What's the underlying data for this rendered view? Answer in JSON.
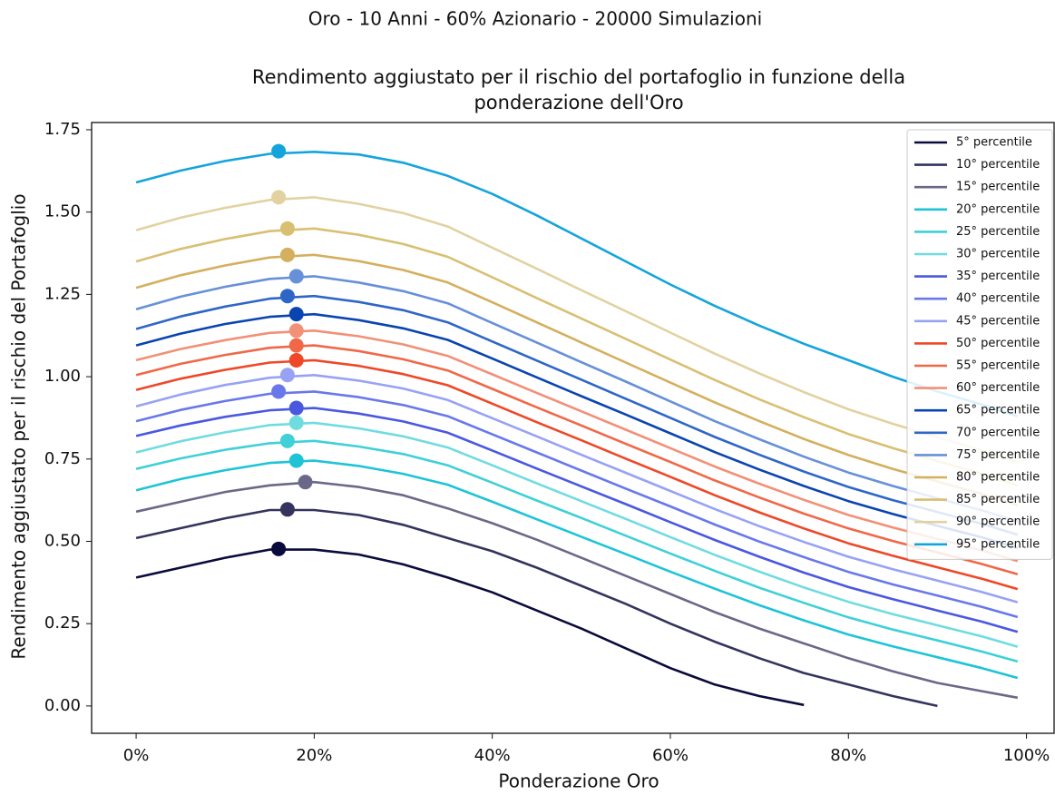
{
  "chart_data": {
    "type": "line",
    "suptitle": "Oro - 10 Anni - 60% Azionario - 20000 Simulazioni",
    "title": [
      "Rendimento aggiustato per il rischio del portafoglio in funzione della",
      "ponderazione dell'Oro"
    ],
    "x_label": "Ponderazione Oro",
    "y_label": "Rendimento aggiustato per il rischio del Portafoglio",
    "xlim": [
      -5,
      103.1
    ],
    "ylim": [
      -0.083,
      1.772
    ],
    "xticks": [
      {
        "value": 0,
        "label": "0%"
      },
      {
        "value": 20,
        "label": "20%"
      },
      {
        "value": 40,
        "label": "40%"
      },
      {
        "value": 60,
        "label": "60%"
      },
      {
        "value": 80,
        "label": "80%"
      },
      {
        "value": 100,
        "label": "100%"
      }
    ],
    "yticks": [
      {
        "value": 0,
        "label": "0.00"
      },
      {
        "value": 0.25,
        "label": "0.25"
      },
      {
        "value": 0.5,
        "label": "0.50"
      },
      {
        "value": 0.75,
        "label": "0.75"
      },
      {
        "value": 1,
        "label": "1.00"
      },
      {
        "value": 1.25,
        "label": "1.25"
      },
      {
        "value": 1.5,
        "label": "1.50"
      },
      {
        "value": 1.75,
        "label": "1.75"
      }
    ],
    "legend_position": "upper right",
    "x": [
      0,
      5,
      10,
      15,
      20,
      25,
      30,
      35,
      40,
      45,
      50,
      55,
      60,
      65,
      70,
      75,
      80,
      85,
      90,
      95,
      99
    ],
    "series": [
      {
        "name": "5° percentile",
        "color": "#0a0a3c",
        "max_x": 16,
        "max_y": 0.477,
        "values": [
          0.39,
          0.42,
          0.45,
          0.475,
          0.475,
          0.46,
          0.43,
          0.39,
          0.345,
          0.29,
          0.235,
          0.175,
          0.115,
          0.065,
          0.03,
          0.003,
          null,
          null,
          null,
          null,
          null
        ]
      },
      {
        "name": "10° percentile",
        "color": "#34335e",
        "max_x": 17,
        "max_y": 0.597,
        "values": [
          0.51,
          0.54,
          0.57,
          0.595,
          0.595,
          0.58,
          0.55,
          0.51,
          0.47,
          0.42,
          0.365,
          0.31,
          0.25,
          0.195,
          0.145,
          0.1,
          0.065,
          0.03,
          0.0,
          null,
          null
        ]
      },
      {
        "name": "15° percentile",
        "color": "#6a6888",
        "max_x": 19,
        "max_y": 0.68,
        "values": [
          0.59,
          0.62,
          0.65,
          0.67,
          0.68,
          0.665,
          0.64,
          0.6,
          0.555,
          0.505,
          0.45,
          0.395,
          0.34,
          0.285,
          0.235,
          0.19,
          0.145,
          0.105,
          0.07,
          0.045,
          0.025
        ]
      },
      {
        "name": "20° percentile",
        "color": "#1ec4d6",
        "max_x": 18,
        "max_y": 0.745,
        "values": [
          0.655,
          0.689,
          0.716,
          0.738,
          0.745,
          0.729,
          0.705,
          0.672,
          0.62,
          0.567,
          0.514,
          0.461,
          0.408,
          0.356,
          0.306,
          0.26,
          0.217,
          0.181,
          0.148,
          0.115,
          0.085
        ]
      },
      {
        "name": "25° percentile",
        "color": "#40d0d8",
        "max_x": 17,
        "max_y": 0.805,
        "values": [
          0.72,
          0.752,
          0.778,
          0.798,
          0.805,
          0.788,
          0.765,
          0.731,
          0.678,
          0.624,
          0.571,
          0.517,
          0.463,
          0.41,
          0.359,
          0.313,
          0.269,
          0.232,
          0.199,
          0.165,
          0.135
        ]
      },
      {
        "name": "30° percentile",
        "color": "#70dce0",
        "max_x": 18,
        "max_y": 0.86,
        "values": [
          0.77,
          0.804,
          0.831,
          0.853,
          0.86,
          0.843,
          0.819,
          0.785,
          0.731,
          0.676,
          0.622,
          0.568,
          0.513,
          0.459,
          0.408,
          0.36,
          0.316,
          0.279,
          0.245,
          0.211,
          0.18
        ]
      },
      {
        "name": "35° percentile",
        "color": "#4a58e0",
        "max_x": 18,
        "max_y": 0.905,
        "values": [
          0.82,
          0.852,
          0.878,
          0.898,
          0.905,
          0.888,
          0.864,
          0.83,
          0.776,
          0.721,
          0.667,
          0.613,
          0.558,
          0.504,
          0.453,
          0.405,
          0.361,
          0.324,
          0.29,
          0.256,
          0.225
        ]
      },
      {
        "name": "40° percentile",
        "color": "#6878ea",
        "max_x": 16,
        "max_y": 0.955,
        "values": [
          0.865,
          0.899,
          0.926,
          0.948,
          0.955,
          0.938,
          0.914,
          0.88,
          0.825,
          0.77,
          0.715,
          0.66,
          0.606,
          0.551,
          0.499,
          0.452,
          0.407,
          0.369,
          0.335,
          0.301,
          0.27
        ]
      },
      {
        "name": "45° percentile",
        "color": "#98a2f4",
        "max_x": 17,
        "max_y": 1.005,
        "values": [
          0.91,
          0.946,
          0.975,
          0.997,
          1.005,
          0.988,
          0.964,
          0.929,
          0.874,
          0.819,
          0.763,
          0.708,
          0.653,
          0.598,
          0.546,
          0.498,
          0.453,
          0.415,
          0.381,
          0.346,
          0.315
        ]
      },
      {
        "name": "50° percentile",
        "color": "#ee4828",
        "max_x": 18,
        "max_y": 1.05,
        "values": [
          0.96,
          0.994,
          1.021,
          1.043,
          1.05,
          1.033,
          1.008,
          0.974,
          0.918,
          0.862,
          0.807,
          0.751,
          0.696,
          0.64,
          0.588,
          0.539,
          0.494,
          0.456,
          0.421,
          0.386,
          0.355
        ]
      },
      {
        "name": "55° percentile",
        "color": "#f06848",
        "max_x": 18,
        "max_y": 1.095,
        "values": [
          1.005,
          1.039,
          1.066,
          1.088,
          1.095,
          1.078,
          1.053,
          1.019,
          0.963,
          0.907,
          0.852,
          0.796,
          0.741,
          0.685,
          0.633,
          0.584,
          0.539,
          0.501,
          0.466,
          0.431,
          0.4
        ]
      },
      {
        "name": "60° percentile",
        "color": "#f29078",
        "max_x": 18,
        "max_y": 1.14,
        "values": [
          1.05,
          1.084,
          1.111,
          1.133,
          1.14,
          1.123,
          1.098,
          1.063,
          1.007,
          0.951,
          0.895,
          0.839,
          0.783,
          0.727,
          0.675,
          0.626,
          0.58,
          0.542,
          0.507,
          0.472,
          0.44
        ]
      },
      {
        "name": "65° percentile",
        "color": "#0a44b0",
        "max_x": 18,
        "max_y": 1.19,
        "values": [
          1.095,
          1.131,
          1.16,
          1.182,
          1.19,
          1.172,
          1.147,
          1.112,
          1.055,
          0.998,
          0.941,
          0.885,
          0.828,
          0.771,
          0.718,
          0.668,
          0.622,
          0.583,
          0.547,
          0.512,
          0.48
        ]
      },
      {
        "name": "70° percentile",
        "color": "#2e66c8",
        "max_x": 17,
        "max_y": 1.245,
        "values": [
          1.145,
          1.183,
          1.213,
          1.237,
          1.245,
          1.227,
          1.202,
          1.165,
          1.107,
          1.049,
          0.991,
          0.933,
          0.875,
          0.817,
          0.763,
          0.712,
          0.665,
          0.625,
          0.589,
          0.553,
          0.52
        ]
      },
      {
        "name": "75° percentile",
        "color": "#6690d8",
        "max_x": 18,
        "max_y": 1.305,
        "values": [
          1.205,
          1.243,
          1.273,
          1.297,
          1.305,
          1.286,
          1.26,
          1.223,
          1.163,
          1.104,
          1.044,
          0.985,
          0.925,
          0.865,
          0.81,
          0.757,
          0.709,
          0.668,
          0.631,
          0.594,
          0.56
        ]
      },
      {
        "name": "80° percentile",
        "color": "#d4af5e",
        "max_x": 17,
        "max_y": 1.37,
        "values": [
          1.27,
          1.308,
          1.338,
          1.362,
          1.37,
          1.351,
          1.324,
          1.286,
          1.226,
          1.165,
          1.104,
          1.043,
          0.982,
          0.922,
          0.865,
          0.811,
          0.762,
          0.72,
          0.682,
          0.644,
          0.61
        ]
      },
      {
        "name": "85° percentile",
        "color": "#d9bf72",
        "max_x": 17,
        "max_y": 1.45,
        "values": [
          1.35,
          1.388,
          1.418,
          1.442,
          1.45,
          1.431,
          1.403,
          1.364,
          1.302,
          1.239,
          1.177,
          1.115,
          1.052,
          0.99,
          0.931,
          0.877,
          0.826,
          0.783,
          0.744,
          0.705,
          0.67
        ]
      },
      {
        "name": "90° percentile",
        "color": "#e2d2a2",
        "max_x": 16,
        "max_y": 1.545,
        "values": [
          1.445,
          1.483,
          1.513,
          1.537,
          1.545,
          1.525,
          1.497,
          1.456,
          1.392,
          1.328,
          1.263,
          1.199,
          1.134,
          1.07,
          1.01,
          0.953,
          0.901,
          0.857,
          0.816,
          0.776,
          0.74
        ]
      },
      {
        "name": "95° percentile",
        "color": "#14a4dc",
        "max_x": 16,
        "max_y": 1.685,
        "values": [
          1.59,
          1.626,
          1.655,
          1.677,
          1.683,
          1.675,
          1.65,
          1.61,
          1.555,
          1.49,
          1.42,
          1.35,
          1.28,
          1.215,
          1.155,
          1.1,
          1.05,
          1.0,
          0.955,
          0.915,
          0.88
        ]
      }
    ]
  }
}
